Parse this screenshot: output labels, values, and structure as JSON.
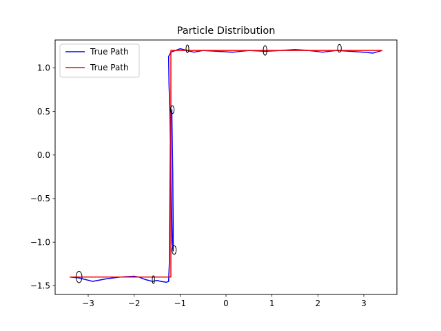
{
  "chart_data": {
    "type": "line",
    "title": "Particle Distribution",
    "xlabel": "",
    "ylabel": "",
    "xlim": [
      -3.72,
      3.72
    ],
    "ylim": [
      -1.6,
      1.32
    ],
    "xticks": [
      -3,
      -2,
      -1,
      0,
      1,
      2,
      3
    ],
    "xtick_labels": [
      "−3",
      "−2",
      "−1",
      "0",
      "1",
      "2",
      "3"
    ],
    "yticks": [
      -1.5,
      -1.0,
      -0.5,
      0.0,
      0.5,
      1.0
    ],
    "ytick_labels": [
      "−1.5",
      "−1.0",
      "−0.5",
      "0.0",
      "0.5",
      "1.0"
    ],
    "grid": false,
    "legend_position": "top-left",
    "series": [
      {
        "name": "True Path",
        "color": "#0000ff",
        "x": [
          -3.4,
          -3.2,
          -2.9,
          -2.6,
          -2.3,
          -2.0,
          -1.9,
          -1.75,
          -1.6,
          -1.5,
          -1.42,
          -1.3,
          -1.25,
          -1.23,
          -1.22,
          -1.21,
          -1.2,
          -1.18,
          -1.16,
          -1.15,
          -1.15,
          -1.17,
          -1.2,
          -1.22,
          -1.24,
          -1.25,
          -1.22,
          -1.2,
          -1.1,
          -1.0,
          -0.85,
          -0.7,
          -0.5,
          -0.2,
          0.15,
          0.5,
          0.85,
          1.2,
          1.5,
          1.8,
          2.1,
          2.4,
          2.7,
          3.0,
          3.2,
          3.4
        ],
        "y": [
          -1.4,
          -1.41,
          -1.45,
          -1.42,
          -1.4,
          -1.39,
          -1.4,
          -1.43,
          -1.45,
          -1.44,
          -1.45,
          -1.46,
          -1.45,
          -1.2,
          -0.5,
          0.2,
          0.45,
          0.52,
          -0.2,
          -0.77,
          -1.1,
          -1.0,
          -0.2,
          0.5,
          0.8,
          1.13,
          1.16,
          1.18,
          1.2,
          1.22,
          1.2,
          1.18,
          1.2,
          1.19,
          1.18,
          1.2,
          1.19,
          1.2,
          1.21,
          1.2,
          1.18,
          1.2,
          1.19,
          1.18,
          1.17,
          1.2
        ]
      },
      {
        "name": "True Path",
        "color": "#ff0000",
        "x": [
          -3.4,
          -1.2,
          -1.2,
          3.4
        ],
        "y": [
          -1.4,
          -1.4,
          1.2,
          1.2
        ]
      }
    ],
    "ellipses": [
      {
        "cx": -3.2,
        "cy": -1.4,
        "rx": 0.065,
        "ry": 0.065
      },
      {
        "cx": -1.58,
        "cy": -1.43,
        "rx": 0.025,
        "ry": 0.045
      },
      {
        "cx": -1.13,
        "cy": -1.09,
        "rx": 0.045,
        "ry": 0.05
      },
      {
        "cx": -1.17,
        "cy": 0.52,
        "rx": 0.04,
        "ry": 0.045
      },
      {
        "cx": -0.84,
        "cy": 1.22,
        "rx": 0.03,
        "ry": 0.045
      },
      {
        "cx": 0.85,
        "cy": 1.2,
        "rx": 0.04,
        "ry": 0.055
      },
      {
        "cx": 2.47,
        "cy": 1.225,
        "rx": 0.04,
        "ry": 0.045
      }
    ]
  }
}
